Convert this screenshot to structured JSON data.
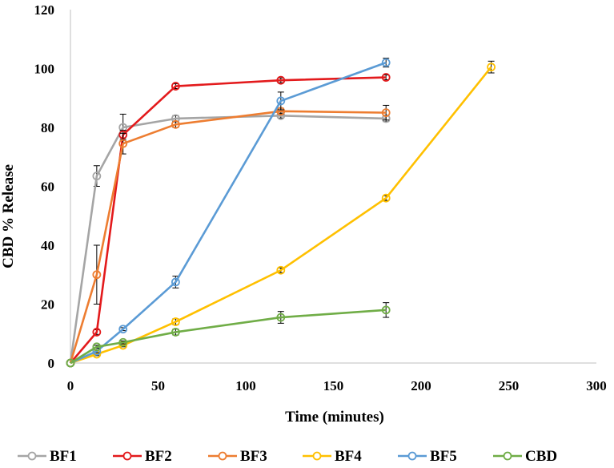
{
  "chart_data": {
    "type": "line",
    "title": "",
    "xlabel": "Time (minutes)",
    "ylabel": "CBD % Release",
    "xlim": [
      0,
      300
    ],
    "ylim": [
      0,
      120
    ],
    "x_ticks": [
      "0",
      "50",
      "100",
      "150",
      "200",
      "250",
      "300"
    ],
    "y_ticks": [
      "0",
      "20",
      "40",
      "60",
      "80",
      "100",
      "120"
    ],
    "grid": false,
    "legend_position": "bottom",
    "series": [
      {
        "name": "BF1",
        "color": "#a5a5a5",
        "x": [
          0,
          15,
          30,
          60,
          120,
          180
        ],
        "y": [
          0,
          63.5,
          80,
          83,
          84,
          83
        ],
        "err": [
          0,
          3.5,
          4.5,
          1,
          0.8,
          1
        ]
      },
      {
        "name": "BF2",
        "color": "#e31a1c",
        "x": [
          0,
          15,
          30,
          60,
          120,
          180
        ],
        "y": [
          0,
          10.5,
          77.5,
          94,
          96,
          97
        ],
        "err": [
          0,
          0.8,
          1.5,
          0.8,
          0.8,
          0.8
        ]
      },
      {
        "name": "BF3",
        "color": "#ed7d31",
        "x": [
          0,
          15,
          30,
          60,
          120,
          180
        ],
        "y": [
          0,
          30,
          74.5,
          81,
          85.5,
          85
        ],
        "err": [
          0,
          10,
          3.5,
          1,
          1,
          2.5
        ]
      },
      {
        "name": "BF4",
        "color": "#ffc000",
        "x": [
          0,
          15,
          30,
          60,
          120,
          180,
          240
        ],
        "y": [
          0,
          3,
          6,
          14,
          31.5,
          56,
          100.5
        ],
        "err": [
          0,
          0.5,
          0.5,
          1,
          0.8,
          0.8,
          2
        ]
      },
      {
        "name": "BF5",
        "color": "#5b9bd5",
        "x": [
          0,
          15,
          30,
          60,
          120,
          180
        ],
        "y": [
          0,
          4,
          11.5,
          27.5,
          89,
          102
        ],
        "err": [
          0,
          0.5,
          0.5,
          2,
          3,
          1.5
        ]
      },
      {
        "name": "CBD",
        "color": "#70ad47",
        "x": [
          0,
          15,
          30,
          60,
          120,
          180
        ],
        "y": [
          0,
          5.5,
          7,
          10.5,
          15.5,
          18
        ],
        "err": [
          0,
          0.5,
          0.5,
          1,
          2,
          2.5
        ]
      }
    ]
  }
}
